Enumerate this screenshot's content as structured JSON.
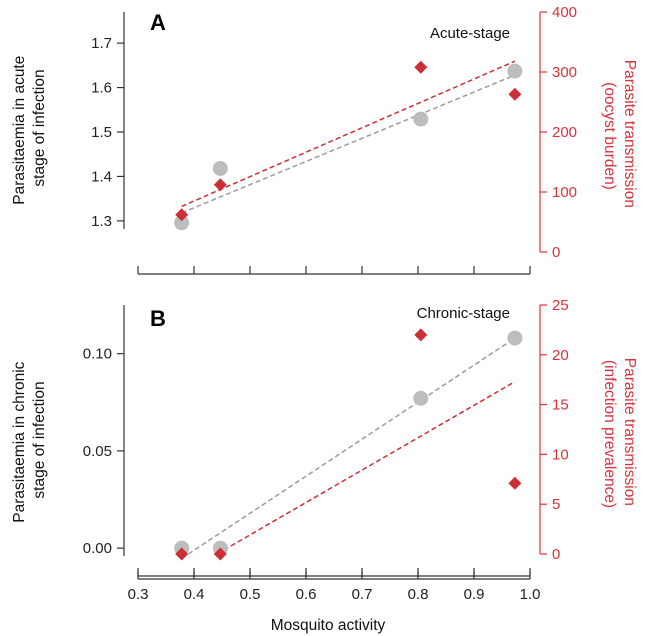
{
  "colors": {
    "left_series": "#bdbdbd",
    "left_fit": "#9a9aa8",
    "right_series": "#cc2f35",
    "right_axis": "#d8323c",
    "axis": "#333333"
  },
  "xlabel": "Mosquito activity",
  "x_ticks": [
    "0.3",
    "0.4",
    "0.5",
    "0.6",
    "0.7",
    "0.8",
    "0.9",
    "1.0"
  ],
  "chart_data": [
    {
      "type": "scatter",
      "panel": "A",
      "annotation": "Acute-stage",
      "xlim": [
        0.3,
        1.0
      ],
      "ylabel_left": [
        "Parasitaemia in acute",
        "stage of infection"
      ],
      "ylabel_right": [
        "Parasite transmission",
        "(oocyst burden)"
      ],
      "ylim_left": [
        1.23,
        1.77
      ],
      "ylim_right": [
        0,
        400
      ],
      "left_ticks": [
        1.3,
        1.4,
        1.5,
        1.6,
        1.7
      ],
      "left_tick_labels": [
        "1.3",
        "1.4",
        "1.5",
        "1.6",
        "1.7"
      ],
      "right_ticks": [
        0,
        100,
        200,
        300,
        400
      ],
      "right_tick_labels": [
        "0",
        "100",
        "200",
        "300",
        "400"
      ],
      "series": [
        {
          "axis": "left",
          "marker": "circle",
          "x": [
            0.378,
            0.447,
            0.805,
            0.973
          ],
          "y": [
            1.296,
            1.418,
            1.529,
            1.637
          ]
        },
        {
          "axis": "right",
          "marker": "diamond",
          "x": [
            0.378,
            0.447,
            0.805,
            0.973
          ],
          "y": [
            62,
            112,
            308,
            263
          ]
        }
      ],
      "trendlines": [
        {
          "axis": "left",
          "x": [
            0.378,
            0.973
          ],
          "y": [
            1.318,
            1.628
          ]
        },
        {
          "axis": "right",
          "x": [
            0.378,
            0.973
          ],
          "y": [
            76,
            318
          ]
        }
      ]
    },
    {
      "type": "scatter",
      "panel": "B",
      "annotation": "Chronic-stage",
      "xlim": [
        0.3,
        1.0
      ],
      "ylabel_left": [
        "Parasitaemia in chronic",
        "stage of infection"
      ],
      "ylabel_right": [
        "Parasite transmission",
        "(infection prevalence)"
      ],
      "ylim_left": [
        -0.003,
        0.125
      ],
      "ylim_right": [
        0,
        25
      ],
      "left_ticks": [
        0.0,
        0.05,
        0.1
      ],
      "left_tick_labels": [
        "0.00",
        "0.05",
        "0.10"
      ],
      "right_ticks": [
        0,
        5,
        10,
        15,
        20,
        25
      ],
      "right_tick_labels": [
        "0",
        "5",
        "10",
        "15",
        "20",
        "25"
      ],
      "series": [
        {
          "axis": "left",
          "marker": "circle",
          "x": [
            0.378,
            0.447,
            0.805,
            0.973
          ],
          "y": [
            0.0,
            0.0,
            0.077,
            0.108
          ]
        },
        {
          "axis": "right",
          "marker": "diamond",
          "x": [
            0.378,
            0.447,
            0.805,
            0.973
          ],
          "y": [
            0,
            0,
            22,
            7.1
          ]
        }
      ],
      "trendlines": [
        {
          "axis": "left",
          "x": [
            0.39,
            0.973
          ],
          "y": [
            -0.003,
            0.108
          ]
        },
        {
          "axis": "right",
          "x": [
            0.441,
            0.973
          ],
          "y": [
            0,
            17.3
          ]
        }
      ]
    }
  ]
}
